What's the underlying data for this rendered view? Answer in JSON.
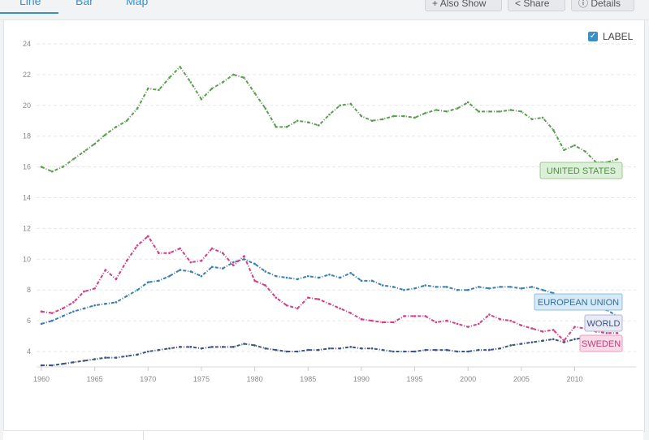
{
  "tabs": {
    "line": "Line",
    "bar": "Bar",
    "map": "Map"
  },
  "toolbar": {
    "also_show": "Also Show",
    "share": "Share",
    "details": "Details"
  },
  "label_toggle": {
    "text": "LABEL",
    "checked": true
  },
  "chart_data": {
    "type": "line",
    "x": [
      1960,
      1961,
      1962,
      1963,
      1964,
      1965,
      1966,
      1967,
      1968,
      1969,
      1970,
      1971,
      1972,
      1973,
      1974,
      1975,
      1976,
      1977,
      1978,
      1979,
      1980,
      1981,
      1982,
      1983,
      1984,
      1985,
      1986,
      1987,
      1988,
      1989,
      1990,
      1991,
      1992,
      1993,
      1994,
      1995,
      1996,
      1997,
      1998,
      1999,
      2000,
      2001,
      2002,
      2003,
      2004,
      2005,
      2006,
      2007,
      2008,
      2009,
      2010,
      2011,
      2012,
      2013,
      2014
    ],
    "xlim": [
      1960,
      2014
    ],
    "ylim": [
      3,
      24
    ],
    "xticks": [
      1960,
      1965,
      1970,
      1975,
      1980,
      1985,
      1990,
      1995,
      2000,
      2005,
      2010
    ],
    "yticks": [
      4,
      6,
      8,
      10,
      12,
      14,
      16,
      18,
      20,
      22,
      24
    ],
    "grid": true,
    "series": [
      {
        "name": "UNITED STATES",
        "color": "#5c9e4f",
        "values": [
          16.0,
          15.7,
          16.0,
          16.5,
          17.0,
          17.5,
          18.1,
          18.6,
          19.0,
          19.8,
          21.1,
          21.0,
          21.8,
          22.5,
          21.5,
          20.4,
          21.1,
          21.5,
          22.0,
          21.8,
          20.8,
          19.8,
          18.6,
          18.6,
          19.0,
          18.9,
          18.7,
          19.4,
          20.0,
          20.1,
          19.3,
          19.0,
          19.1,
          19.3,
          19.3,
          19.2,
          19.5,
          19.7,
          19.6,
          19.8,
          20.2,
          19.6,
          19.6,
          19.6,
          19.7,
          19.6,
          19.1,
          19.2,
          18.4,
          17.1,
          17.4,
          17.0,
          16.3,
          16.3,
          16.5
        ]
      },
      {
        "name": "EUROPEAN UNION",
        "color": "#3a7fb0",
        "values": [
          5.8,
          6.0,
          6.3,
          6.6,
          6.8,
          7.0,
          7.1,
          7.2,
          7.6,
          8.0,
          8.5,
          8.6,
          8.9,
          9.3,
          9.2,
          8.9,
          9.5,
          9.4,
          9.8,
          10.0,
          9.7,
          9.2,
          8.9,
          8.8,
          8.7,
          8.9,
          8.8,
          9.0,
          8.8,
          9.1,
          8.6,
          8.6,
          8.3,
          8.2,
          8.0,
          8.1,
          8.3,
          8.2,
          8.2,
          8.0,
          8.0,
          8.2,
          8.1,
          8.2,
          8.2,
          8.1,
          8.2,
          8.0,
          7.8,
          7.2,
          7.3,
          7.0,
          6.8,
          6.7,
          6.3
        ]
      },
      {
        "name": "WORLD",
        "color": "#3b5680",
        "values": [
          3.1,
          3.1,
          3.2,
          3.3,
          3.4,
          3.5,
          3.6,
          3.6,
          3.7,
          3.8,
          4.0,
          4.1,
          4.2,
          4.3,
          4.3,
          4.2,
          4.3,
          4.3,
          4.3,
          4.5,
          4.4,
          4.2,
          4.1,
          4.0,
          4.0,
          4.1,
          4.1,
          4.2,
          4.2,
          4.3,
          4.2,
          4.2,
          4.1,
          4.0,
          4.0,
          4.0,
          4.1,
          4.1,
          4.1,
          4.0,
          4.0,
          4.1,
          4.1,
          4.2,
          4.4,
          4.5,
          4.6,
          4.7,
          4.8,
          4.6,
          4.8,
          4.9,
          5.0,
          4.9,
          4.9
        ]
      },
      {
        "name": "SWEDEN",
        "color": "#d13f86",
        "values": [
          6.6,
          6.5,
          6.8,
          7.2,
          7.9,
          8.1,
          9.3,
          8.7,
          9.9,
          10.9,
          11.5,
          10.4,
          10.4,
          10.7,
          9.8,
          9.9,
          10.7,
          10.4,
          9.6,
          10.2,
          8.6,
          8.3,
          7.5,
          7.0,
          6.8,
          7.5,
          7.4,
          7.1,
          6.8,
          6.5,
          6.1,
          6.0,
          5.9,
          5.9,
          6.3,
          6.3,
          6.3,
          5.9,
          6.0,
          5.8,
          5.6,
          5.8,
          6.4,
          6.1,
          6.0,
          5.7,
          5.5,
          5.3,
          5.4,
          4.7,
          5.6,
          5.5,
          5.3,
          5.2,
          5.2
        ]
      }
    ]
  }
}
